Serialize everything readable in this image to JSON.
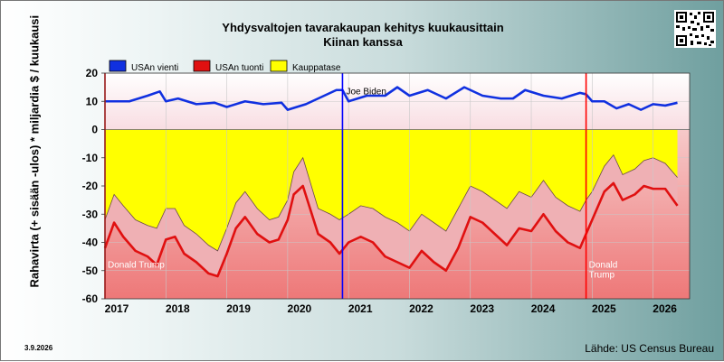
{
  "header": {
    "title_line1": "Yhdysvaltojen tavarakaupan kehitys kuukausittain",
    "title_line2": "Kiinan kanssa"
  },
  "footer": {
    "date": "3.9.2026",
    "source": "Lähde: US Census Bureau"
  },
  "qr": {
    "icon": "qr-code-icon"
  },
  "chart_data": {
    "type": "line",
    "ylabel": "Rahavirta (+ sisään -ulos)  *  miljardia $ / kuukausi",
    "ylim": [
      -60,
      20
    ],
    "y_ticks": [
      20,
      10,
      0,
      -10,
      -20,
      -30,
      -40,
      -50,
      -60
    ],
    "x_range": [
      2017.0,
      2026.6
    ],
    "x_ticks": [
      "2017",
      "2018",
      "2019",
      "2020",
      "2021",
      "2022",
      "2023",
      "2024",
      "2025",
      "2026"
    ],
    "grid": true,
    "legend_position": "top-left",
    "colors": {
      "exports": "#1030e0",
      "imports": "#e01010",
      "balance": "#ffff00",
      "plot_pos": "#fbeef0",
      "plot_neg": "#f08080"
    },
    "series": [
      {
        "name": "USAn vienti",
        "color": "#1030e0",
        "x": [
          2017.0,
          2017.4,
          2017.7,
          2017.9,
          2018.0,
          2018.2,
          2018.5,
          2018.8,
          2019.0,
          2019.3,
          2019.6,
          2019.9,
          2020.0,
          2020.3,
          2020.6,
          2020.8,
          2020.9,
          2021.0,
          2021.3,
          2021.6,
          2021.8,
          2022.0,
          2022.3,
          2022.6,
          2022.9,
          2023.2,
          2023.5,
          2023.7,
          2023.9,
          2024.2,
          2024.5,
          2024.8,
          2024.9,
          2025.0,
          2025.2,
          2025.4,
          2025.6,
          2025.8,
          2026.0,
          2026.2,
          2026.4
        ],
        "y": [
          10,
          10,
          12,
          13.5,
          10,
          11,
          9,
          9.5,
          8,
          10,
          9,
          9.5,
          7,
          9,
          12,
          14,
          14,
          10,
          12,
          12,
          15,
          12,
          14,
          11,
          15,
          12,
          11,
          11,
          14,
          12,
          11,
          13,
          12.5,
          10,
          10,
          7.5,
          9,
          7,
          9,
          8.5,
          9.5
        ]
      },
      {
        "name": "USAn tuonti",
        "color": "#e01010",
        "x": [
          2017.0,
          2017.15,
          2017.3,
          2017.5,
          2017.7,
          2017.85,
          2018.0,
          2018.15,
          2018.3,
          2018.5,
          2018.7,
          2018.85,
          2019.0,
          2019.15,
          2019.3,
          2019.5,
          2019.7,
          2019.85,
          2020.0,
          2020.1,
          2020.25,
          2020.5,
          2020.7,
          2020.85,
          2021.0,
          2021.2,
          2021.4,
          2021.6,
          2021.8,
          2022.0,
          2022.2,
          2022.4,
          2022.6,
          2022.8,
          2023.0,
          2023.2,
          2023.4,
          2023.6,
          2023.8,
          2024.0,
          2024.2,
          2024.4,
          2024.6,
          2024.8,
          2024.9,
          2025.0,
          2025.2,
          2025.35,
          2025.5,
          2025.7,
          2025.85,
          2026.0,
          2026.2,
          2026.4
        ],
        "y": [
          -42,
          -33,
          -38,
          -43,
          -45,
          -48,
          -39,
          -38,
          -44,
          -47,
          -51,
          -52,
          -44,
          -35,
          -31,
          -37,
          -40,
          -39,
          -32,
          -23,
          -20,
          -37,
          -40,
          -44,
          -40,
          -38,
          -40,
          -45,
          -47,
          -49,
          -43,
          -47,
          -50,
          -42,
          -31,
          -33,
          -37,
          -41,
          -35,
          -36,
          -30,
          -36,
          -40,
          -42,
          -37,
          -32,
          -22,
          -19,
          -25,
          -23,
          -20,
          -21,
          -21,
          -27
        ]
      },
      {
        "name": "Kauppatase",
        "color": "#ffff00",
        "x": [
          2017.0,
          2017.15,
          2017.3,
          2017.5,
          2017.7,
          2017.85,
          2018.0,
          2018.15,
          2018.3,
          2018.5,
          2018.7,
          2018.85,
          2019.0,
          2019.15,
          2019.3,
          2019.5,
          2019.7,
          2019.85,
          2020.0,
          2020.1,
          2020.25,
          2020.5,
          2020.7,
          2020.85,
          2021.0,
          2021.2,
          2021.4,
          2021.6,
          2021.8,
          2022.0,
          2022.2,
          2022.4,
          2022.6,
          2022.8,
          2023.0,
          2023.2,
          2023.4,
          2023.6,
          2023.8,
          2024.0,
          2024.2,
          2024.4,
          2024.6,
          2024.8,
          2024.9,
          2025.0,
          2025.2,
          2025.35,
          2025.5,
          2025.7,
          2025.85,
          2026.0,
          2026.2,
          2026.4
        ],
        "y": [
          -32,
          -23,
          -27,
          -32,
          -34,
          -35,
          -28,
          -28,
          -34,
          -37,
          -41,
          -43,
          -35,
          -26,
          -22,
          -28,
          -32,
          -31,
          -25,
          -15,
          -10,
          -28,
          -30,
          -32,
          -30,
          -27,
          -28,
          -31,
          -33,
          -36,
          -30,
          -33,
          -36,
          -28,
          -20,
          -22,
          -25,
          -28,
          -22,
          -24,
          -18,
          -24,
          -27,
          -29,
          -25,
          -22,
          -13,
          -9,
          -16,
          -14,
          -11,
          -10,
          -12,
          -17
        ]
      }
    ],
    "annotations": [
      {
        "label": "Joe Biden",
        "x": 2020.9,
        "color": "#0000ff"
      },
      {
        "label": "Donald Trump",
        "x": 2024.9,
        "color": "#ff0000"
      },
      {
        "label": "Donald Trump",
        "x": 2017.0,
        "color": "#ff0000"
      }
    ]
  }
}
